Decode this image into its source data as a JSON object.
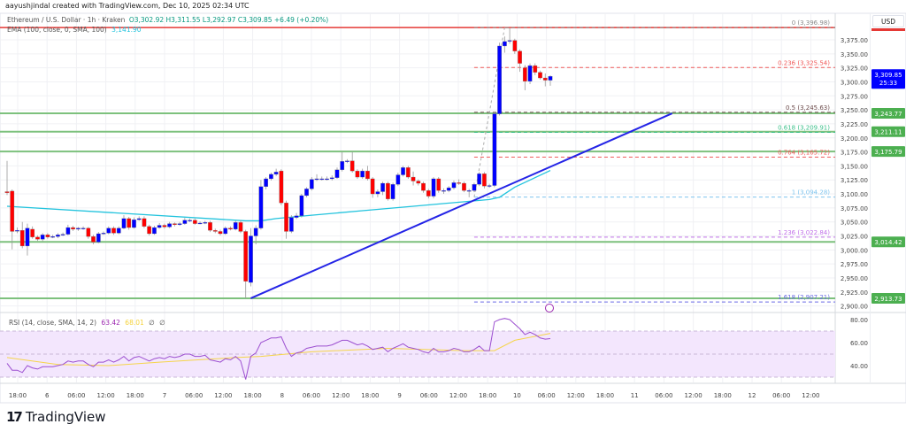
{
  "header": {
    "credit": "aayushjindal created with TradingView.com, Dec 10, 2025 02:34 UTC"
  },
  "legend": {
    "symbol": "Ethereum / U.S. Dollar · 1h · Kraken",
    "ohlc": "O3,302.92 H3,311.55 L3,292.97 C3,309.85 +6.49 (+0.20%)",
    "ema_label": "EMA (100, close, 0, SMA, 100)",
    "ema_value": "3,141.90"
  },
  "rsi_legend": {
    "label": "RSI (14, close, SMA, 14, 2)",
    "rsi_value": "63.42",
    "ma_value": "68.01",
    "sym1": "∅",
    "sym2": "∅"
  },
  "price_axis": {
    "currency": "USD"
  },
  "branding": {
    "logo_mark": "17",
    "name": "TradingView"
  },
  "colors": {
    "up": "#0000ff",
    "down": "#ff0000",
    "ema": "#22c3dd",
    "trendline": "#2424e6",
    "support": "#7dc17d",
    "badge_green": "#4caf50",
    "badge_blue": "#0000ff",
    "rsi": "#9c4fd0",
    "rsi_ma": "#f5d54a",
    "rsi_band": "#f3e6fd"
  },
  "chart_data": [
    {
      "type": "candlestick",
      "title": "Ethereum / U.S. Dollar · 1h · Kraken",
      "ylim": [
        2880,
        3410
      ],
      "y_ticks": [
        "3,375.00",
        "3,350.00",
        "3,325.00",
        "3,300.00",
        "3,275.00",
        "3,250.00",
        "3,225.00",
        "3,200.00",
        "3,175.00",
        "3,150.00",
        "3,125.00",
        "3,100.00",
        "3,075.00",
        "3,050.00",
        "3,025.00",
        "3,000.00",
        "2,975.00",
        "2,950.00",
        "2,925.00",
        "2,900.00"
      ],
      "x_ticks": [
        "18:00",
        "6",
        "06:00",
        "12:00",
        "18:00",
        "7",
        "06:00",
        "12:00",
        "18:00",
        "8",
        "06:00",
        "12:00",
        "18:00",
        "9",
        "06:00",
        "12:00",
        "18:00",
        "10",
        "06:00",
        "12:00",
        "18:00",
        "11",
        "06:00",
        "12:00",
        "18:00",
        "12",
        "06:00",
        "12:00"
      ],
      "grid": true,
      "candles_ohlc": [
        [
          3104,
          3159,
          3098,
          3102
        ],
        [
          3105,
          3108,
          3001,
          3033
        ],
        [
          3035,
          3040,
          3030,
          3035
        ],
        [
          3035,
          3050,
          3003,
          3007
        ],
        [
          3007,
          3047,
          2990,
          3039
        ],
        [
          3037,
          3042,
          3020,
          3023
        ],
        [
          3023,
          3026,
          3016,
          3019
        ],
        [
          3019,
          3030,
          3015,
          3027
        ],
        [
          3027,
          3030,
          3020,
          3023
        ],
        [
          3024,
          3027,
          3021,
          3024
        ],
        [
          3024,
          3030,
          3021,
          3027
        ],
        [
          3027,
          3031,
          3025,
          3028
        ],
        [
          3028,
          3045,
          3026,
          3040
        ],
        [
          3040,
          3043,
          3034,
          3037
        ],
        [
          3037,
          3041,
          3034,
          3039
        ],
        [
          3039,
          3042,
          3036,
          3039
        ],
        [
          3039,
          3041,
          3020,
          3024
        ],
        [
          3024,
          3027,
          3010,
          3014
        ],
        [
          3014,
          3032,
          3012,
          3029
        ],
        [
          3029,
          3033,
          3027,
          3030
        ],
        [
          3030,
          3042,
          3028,
          3039
        ],
        [
          3039,
          3042,
          3027,
          3030
        ],
        [
          3030,
          3042,
          3028,
          3039
        ],
        [
          3039,
          3062,
          3037,
          3056
        ],
        [
          3056,
          3059,
          3036,
          3040
        ],
        [
          3040,
          3058,
          3038,
          3054
        ],
        [
          3054,
          3060,
          3052,
          3056
        ],
        [
          3056,
          3060,
          3039,
          3042
        ],
        [
          3042,
          3045,
          3026,
          3029
        ],
        [
          3029,
          3043,
          3027,
          3040
        ],
        [
          3040,
          3048,
          3038,
          3044
        ],
        [
          3044,
          3047,
          3038,
          3041
        ],
        [
          3041,
          3050,
          3039,
          3047
        ],
        [
          3047,
          3049,
          3042,
          3045
        ],
        [
          3045,
          3050,
          3043,
          3047
        ],
        [
          3047,
          3057,
          3045,
          3053
        ],
        [
          3053,
          3056,
          3050,
          3053
        ],
        [
          3053,
          3056,
          3045,
          3047
        ],
        [
          3048,
          3051,
          3046,
          3048
        ],
        [
          3048,
          3052,
          3046,
          3049
        ],
        [
          3049,
          3052,
          3032,
          3035
        ],
        [
          3035,
          3038,
          3030,
          3033
        ],
        [
          3033,
          3036,
          3026,
          3029
        ],
        [
          3029,
          3042,
          3027,
          3039
        ],
        [
          3039,
          3042,
          3035,
          3037
        ],
        [
          3037,
          3052,
          3035,
          3049
        ],
        [
          3049,
          3053,
          3030,
          3033
        ],
        [
          3033,
          3036,
          2913.73,
          2944
        ],
        [
          2942,
          3039,
          2935,
          3025
        ],
        [
          3025,
          3044,
          3010,
          3039
        ],
        [
          3039,
          3125,
          3036,
          3113
        ],
        [
          3113,
          3130,
          3108,
          3127
        ],
        [
          3127,
          3138,
          3124,
          3135
        ],
        [
          3135,
          3145,
          3132,
          3139
        ],
        [
          3141,
          3144,
          3080,
          3084
        ],
        [
          3084,
          3088,
          3020,
          3033
        ],
        [
          3033,
          3062,
          3030,
          3058
        ],
        [
          3058,
          3066,
          3055,
          3061
        ],
        [
          3061,
          3100,
          3058,
          3097
        ],
        [
          3097,
          3112,
          3094,
          3109
        ],
        [
          3109,
          3130,
          3106,
          3126
        ],
        [
          3126,
          3135,
          3123,
          3127
        ],
        [
          3127,
          3131,
          3124,
          3127
        ],
        [
          3127,
          3131,
          3124,
          3127
        ],
        [
          3127,
          3133,
          3124,
          3129
        ],
        [
          3129,
          3147,
          3127,
          3143
        ],
        [
          3143,
          3175,
          3140,
          3158
        ],
        [
          3158,
          3162,
          3155,
          3159
        ],
        [
          3159,
          3175,
          3138,
          3141
        ],
        [
          3141,
          3144,
          3127,
          3130
        ],
        [
          3130,
          3145,
          3127,
          3141
        ],
        [
          3141,
          3150,
          3124,
          3127
        ],
        [
          3127,
          3130,
          3093,
          3100
        ],
        [
          3100,
          3108,
          3094,
          3104
        ],
        [
          3104,
          3122,
          3098,
          3119
        ],
        [
          3119,
          3122,
          3088,
          3091
        ],
        [
          3091,
          3120,
          3088,
          3117
        ],
        [
          3117,
          3138,
          3114,
          3134
        ],
        [
          3134,
          3150,
          3131,
          3147
        ],
        [
          3147,
          3150,
          3127,
          3130
        ],
        [
          3130,
          3140,
          3115,
          3123
        ],
        [
          3123,
          3126,
          3115,
          3119
        ],
        [
          3119,
          3122,
          3102,
          3106
        ],
        [
          3106,
          3109,
          3092,
          3096
        ],
        [
          3096,
          3130,
          3092,
          3127
        ],
        [
          3127,
          3130,
          3102,
          3106
        ],
        [
          3106,
          3110,
          3100,
          3106
        ],
        [
          3106,
          3114,
          3103,
          3111
        ],
        [
          3111,
          3124,
          3108,
          3120
        ],
        [
          3120,
          3126,
          3116,
          3119
        ],
        [
          3119,
          3122,
          3103,
          3106
        ],
        [
          3106,
          3109,
          3094,
          3106
        ],
        [
          3106,
          3120,
          3103,
          3117
        ],
        [
          3117,
          3139,
          3114,
          3136
        ],
        [
          3136,
          3139,
          3110,
          3114
        ],
        [
          3114,
          3118,
          3111,
          3115
        ],
        [
          3115,
          3246,
          3112,
          3243
        ],
        [
          3243,
          3370,
          3240,
          3364
        ],
        [
          3364,
          3381,
          3352,
          3372
        ],
        [
          3374,
          3396.98,
          3368,
          3374
        ],
        [
          3374,
          3377,
          3350,
          3355
        ],
        [
          3355,
          3358,
          3318,
          3333
        ],
        [
          3325,
          3330,
          3285,
          3301
        ],
        [
          3301,
          3333,
          3296,
          3329
        ],
        [
          3329,
          3333,
          3312,
          3317
        ],
        [
          3317,
          3320,
          3304,
          3307
        ],
        [
          3307,
          3315,
          3292,
          3303
        ],
        [
          3302.92,
          3311.55,
          3292.97,
          3309.85
        ]
      ],
      "ema_100_points": [
        [
          0,
          3078
        ],
        [
          47,
          3052
        ],
        [
          50,
          3052
        ],
        [
          53,
          3056
        ],
        [
          60,
          3062
        ],
        [
          70,
          3070
        ],
        [
          80,
          3078
        ],
        [
          95,
          3090
        ],
        [
          97,
          3094
        ],
        [
          100,
          3112
        ],
        [
          107,
          3141.9
        ]
      ],
      "current_price": {
        "value": "3,309.85",
        "countdown": "25:33",
        "price": 3309.85
      },
      "support_levels": [
        {
          "label": "3,243.77",
          "price": 3243.77
        },
        {
          "label": "3,211.11",
          "price": 3211.11
        },
        {
          "label": "3,175.79",
          "price": 3175.79
        },
        {
          "label": "3,014.42",
          "price": 3014.42
        },
        {
          "label": "2,913.73",
          "price": 2913.73
        }
      ],
      "top_line": {
        "price": 3396.98,
        "color": "#e53935"
      },
      "fib_levels": [
        {
          "label": "0 (3,396.98)",
          "price": 3396.98,
          "color": "#8a8a8a"
        },
        {
          "label": "0.236 (3,325.54)",
          "price": 3325.54,
          "color": "#f05a5a"
        },
        {
          "label": "0.5 (3,245.63)",
          "price": 3245.63,
          "color": "#6b4a4a"
        },
        {
          "label": "0.618 (3,209.91)",
          "price": 3209.91,
          "color": "#3cc08a"
        },
        {
          "label": "0.764 (3,165.72)",
          "price": 3165.72,
          "color": "#f05a5a"
        },
        {
          "label": "1 (3,094.28)",
          "price": 3094.28,
          "color": "#7fc4ee"
        },
        {
          "label": "1.236 (3,022.84)",
          "price": 3022.84,
          "color": "#c070e8"
        },
        {
          "label": "1.618 (2,907.21)",
          "price": 2907.21,
          "color": "#6a6ae6"
        }
      ],
      "trendline": {
        "from": [
          48,
          2913.73
        ],
        "to": [
          131,
          3243.77
        ]
      },
      "fib_anchor": {
        "from": [
          92,
          3094.28
        ],
        "to": [
          98,
          3396.98
        ]
      }
    },
    {
      "type": "line",
      "title": "RSI (14, close, SMA, 14, 2)",
      "ylim": [
        20,
        90
      ],
      "y_ticks": [
        "80.00",
        "60.00",
        "40.00"
      ],
      "band": [
        30,
        70
      ],
      "rsi": [
        42,
        36,
        36,
        34,
        40,
        38,
        37,
        39,
        39,
        39,
        40,
        41,
        44,
        43,
        44,
        44,
        41,
        39,
        43,
        43,
        45,
        43,
        45,
        48,
        44,
        47,
        48,
        46,
        44,
        46,
        47,
        46,
        48,
        47,
        48,
        50,
        50,
        48,
        48,
        49,
        45,
        44,
        43,
        46,
        45,
        48,
        44,
        28,
        48,
        51,
        60,
        62,
        64,
        64,
        65,
        55,
        48,
        51,
        52,
        55,
        56,
        57,
        57,
        57,
        58,
        60,
        62,
        62,
        60,
        58,
        59,
        57,
        54,
        55,
        56,
        52,
        55,
        57,
        59,
        56,
        55,
        54,
        52,
        51,
        55,
        52,
        52,
        53,
        55,
        54,
        52,
        52,
        54,
        57,
        53,
        53,
        78,
        80,
        81,
        80,
        76,
        72,
        67,
        69,
        67,
        64,
        63,
        63.42
      ],
      "rsi_ma_points": [
        [
          0,
          47
        ],
        [
          10,
          41
        ],
        [
          20,
          40
        ],
        [
          30,
          43
        ],
        [
          45,
          47
        ],
        [
          50,
          48
        ],
        [
          60,
          52
        ],
        [
          75,
          55
        ],
        [
          90,
          53
        ],
        [
          96,
          53
        ],
        [
          100,
          62
        ],
        [
          107,
          68.01
        ]
      ]
    }
  ]
}
